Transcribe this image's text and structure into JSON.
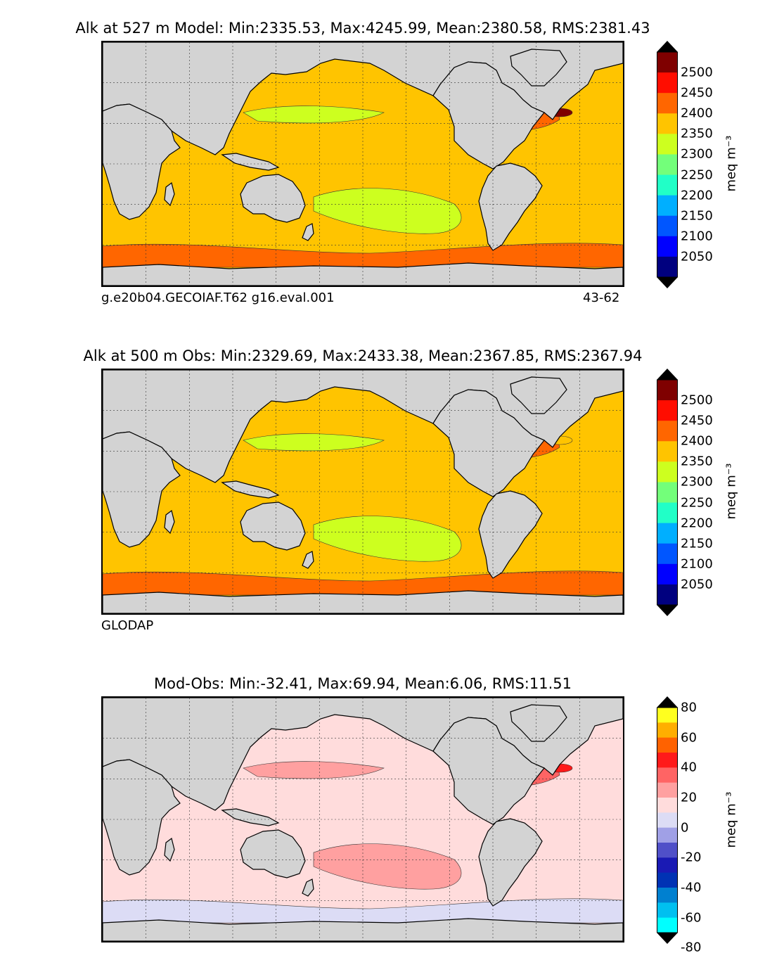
{
  "panels": [
    {
      "title": "Alk at 527 m Model: Min:2335.53, Max:4245.99, Mean:2380.58, RMS:2381.43",
      "caption_left": "g.e20b04.GECOIAF.T62 g16.eval.001",
      "caption_right": "43-62",
      "colorbar": {
        "unit": "meq m⁻³",
        "ticks": [
          "2500",
          "2450",
          "2400",
          "2350",
          "2300",
          "2250",
          "2200",
          "2150",
          "2100",
          "2050"
        ],
        "colors": [
          "#000000",
          "#7f0000",
          "#ff0d00",
          "#ff6600",
          "#ffc400",
          "#cdff1f",
          "#73ff7a",
          "#21ffc7",
          "#00afff",
          "#0056ff",
          "#0000ff",
          "#00007f",
          "#000000"
        ]
      },
      "field": {
        "base": "#ffc400",
        "north_atlantic": "#ff6600",
        "southern": "#ff6600",
        "tropical_south_pacific": "#cdff1f",
        "north_pacific_band": "#cdff1f",
        "hotspot": "#7f0000"
      }
    },
    {
      "title": "Alk at 500 m Obs: Min:2329.69, Max:2433.38, Mean:2367.85, RMS:2367.94",
      "caption_left": "GLODAP",
      "caption_right": "",
      "colorbar": {
        "unit": "meq m⁻³",
        "ticks": [
          "2500",
          "2450",
          "2400",
          "2350",
          "2300",
          "2250",
          "2200",
          "2150",
          "2100",
          "2050"
        ],
        "colors": [
          "#000000",
          "#7f0000",
          "#ff0d00",
          "#ff6600",
          "#ffc400",
          "#cdff1f",
          "#73ff7a",
          "#21ffc7",
          "#00afff",
          "#0056ff",
          "#0000ff",
          "#00007f",
          "#000000"
        ]
      },
      "field": {
        "base": "#ffc400",
        "north_atlantic": "#ff6600",
        "southern": "#ff6600",
        "tropical_south_pacific": "#cdff1f",
        "north_pacific_band": "#cdff1f",
        "hotspot": "#ffc400"
      }
    },
    {
      "title": "Mod-Obs: Min:-32.41, Max:69.94, Mean:6.06, RMS:11.51",
      "caption_left": "",
      "caption_right": "",
      "colorbar": {
        "unit": "meq m⁻³",
        "ticks": [
          "80",
          "60",
          "40",
          "20",
          "0",
          "-20",
          "-40",
          "-60",
          "-80"
        ],
        "colors": [
          "#000000",
          "#ffff1f",
          "#ffae00",
          "#ff6200",
          "#ff1a1a",
          "#ff6464",
          "#ffa0a0",
          "#ffdcdc",
          "#dcdcf5",
          "#a0a0e6",
          "#5050c8",
          "#1a1ab4",
          "#0032b4",
          "#0080d0",
          "#00c0f0",
          "#00ffff",
          "#000000"
        ]
      },
      "field": {
        "base": "#ffdcdc",
        "north_atlantic": "#ff6464",
        "southern": "#dcdcf5",
        "tropical_south_pacific": "#ffa0a0",
        "north_pacific_band": "#ffa0a0",
        "hotspot": "#ff1a1a"
      }
    }
  ],
  "land_color": "#d3d3d3"
}
